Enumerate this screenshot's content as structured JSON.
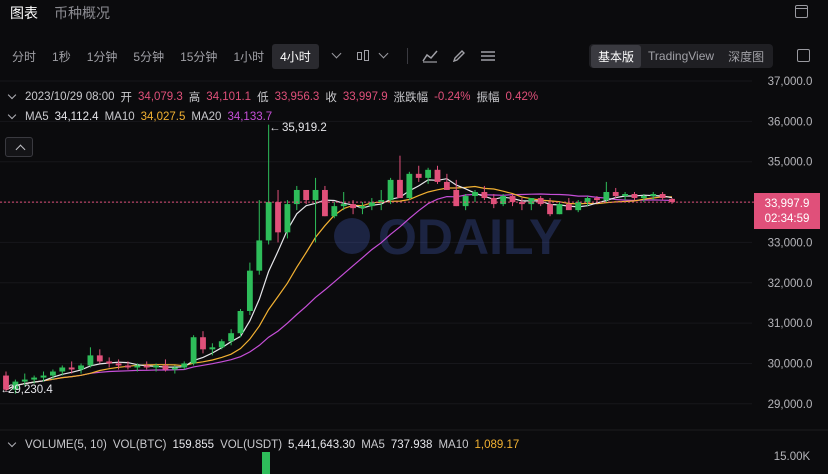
{
  "top_tabs": [
    {
      "label": "图表",
      "active": true
    },
    {
      "label": "币种概况",
      "active": false
    }
  ],
  "timeframes": [
    "分时",
    "1秒",
    "1分钟",
    "5分钟",
    "15分钟",
    "1小时",
    "4小时"
  ],
  "active_timeframe": "4小时",
  "view_modes": [
    "基本版",
    "TradingView",
    "深度图"
  ],
  "active_view_mode": "基本版",
  "ohlc": {
    "date": "2023/10/29 08:00",
    "open_label": "开",
    "open": "34,079.3",
    "high_label": "高",
    "high": "34,101.1",
    "low_label": "低",
    "low": "33,956.3",
    "close_label": "收",
    "close": "33,997.9",
    "change_label": "涨跌幅",
    "change": "-0.24%",
    "amplitude_label": "振幅",
    "amplitude": "0.42%"
  },
  "ma": {
    "ma5_label": "MA5",
    "ma5": "34,112.4",
    "ma10_label": "MA10",
    "ma10": "34,027.5",
    "ma20_label": "MA20",
    "ma20": "34,133.7"
  },
  "volume": {
    "title": "VOLUME(5, 10)",
    "btc_label": "VOL(BTC)",
    "btc": "159.855",
    "usdt_label": "VOL(USDT)",
    "usdt": "5,441,643.30",
    "ma5_label": "MA5",
    "ma5": "737.938",
    "ma10_label": "MA10",
    "ma10": "1,089.17",
    "axis_label": "15.00K"
  },
  "price_tag": {
    "price": "33,997.9",
    "countdown": "02:34:59"
  },
  "annotations": {
    "high_marker": "35,919.2",
    "low_marker": "29,230.4"
  },
  "watermark": "ODAILY",
  "colors": {
    "up": "#2ebd5a",
    "down": "#e0507a",
    "ma5": "#e6e6ea",
    "ma10": "#f2b132",
    "ma20": "#c64fd8",
    "background": "#0b0b0d"
  },
  "chart_data": {
    "type": "candlestick",
    "yaxis_ticks": [
      "37,000.0",
      "36,000.0",
      "35,000.0",
      "34,000.0",
      "33,000.0",
      "32,000.0",
      "31,000.0",
      "30,000.0",
      "29,000.0"
    ],
    "ylim": [
      28400,
      37150
    ],
    "candles": [
      [
        29700,
        29800,
        29300,
        29350
      ],
      [
        29350,
        29600,
        29250,
        29550
      ],
      [
        29550,
        29750,
        29450,
        29600
      ],
      [
        29600,
        29700,
        29500,
        29650
      ],
      [
        29650,
        29800,
        29550,
        29700
      ],
      [
        29700,
        29850,
        29600,
        29800
      ],
      [
        29800,
        29950,
        29700,
        29900
      ],
      [
        29900,
        30050,
        29750,
        29850
      ],
      [
        29850,
        30000,
        29750,
        29950
      ],
      [
        29950,
        30400,
        29900,
        30200
      ],
      [
        30200,
        30350,
        30000,
        30050
      ],
      [
        30050,
        30150,
        29900,
        30000
      ],
      [
        30000,
        30100,
        29850,
        29950
      ],
      [
        29950,
        30050,
        29850,
        29900
      ],
      [
        29900,
        30000,
        29800,
        29950
      ],
      [
        29950,
        30050,
        29850,
        29900
      ],
      [
        29900,
        30000,
        29800,
        29950
      ],
      [
        29950,
        30100,
        29800,
        29850
      ],
      [
        29850,
        29950,
        29750,
        29900
      ],
      [
        29900,
        30050,
        29850,
        30000
      ],
      [
        30000,
        30700,
        29950,
        30650
      ],
      [
        30650,
        30800,
        30250,
        30350
      ],
      [
        30350,
        30500,
        30200,
        30400
      ],
      [
        30400,
        30600,
        30350,
        30550
      ],
      [
        30550,
        30850,
        30450,
        30750
      ],
      [
        30750,
        31350,
        30650,
        31300
      ],
      [
        31300,
        32500,
        31200,
        32300
      ],
      [
        32300,
        34050,
        32200,
        33050
      ],
      [
        33050,
        35919,
        32950,
        34000
      ],
      [
        34000,
        34300,
        33000,
        33250
      ],
      [
        33250,
        34050,
        33100,
        33950
      ],
      [
        33950,
        34400,
        33800,
        34300
      ],
      [
        34300,
        34300,
        33950,
        34050
      ],
      [
        34050,
        34600,
        33000,
        34300
      ],
      [
        34300,
        34400,
        33650,
        33650
      ],
      [
        33650,
        34000,
        33600,
        33900
      ],
      [
        33900,
        34250,
        33800,
        33950
      ],
      [
        33950,
        34050,
        33700,
        33850
      ],
      [
        33850,
        34000,
        33700,
        33900
      ],
      [
        33900,
        34100,
        33800,
        34000
      ],
      [
        34000,
        34300,
        33800,
        34050
      ],
      [
        34050,
        34600,
        33950,
        34550
      ],
      [
        34550,
        35150,
        34100,
        34100
      ],
      [
        34100,
        34750,
        34050,
        34700
      ],
      [
        34700,
        34900,
        34500,
        34600
      ],
      [
        34600,
        34850,
        34450,
        34800
      ],
      [
        34800,
        34900,
        34450,
        34500
      ],
      [
        34500,
        34700,
        34300,
        34300
      ],
      [
        34300,
        34550,
        33900,
        33900
      ],
      [
        33900,
        34200,
        33800,
        34150
      ],
      [
        34150,
        34300,
        34000,
        34250
      ],
      [
        34250,
        34400,
        34050,
        34100
      ],
      [
        34100,
        34200,
        33850,
        33950
      ],
      [
        33950,
        34200,
        33900,
        34150
      ],
      [
        34150,
        34200,
        33900,
        34000
      ],
      [
        34000,
        34100,
        33800,
        33950
      ],
      [
        33950,
        34050,
        33800,
        34100
      ],
      [
        34100,
        34150,
        33900,
        33950
      ],
      [
        33950,
        34100,
        33650,
        33700
      ],
      [
        33700,
        34000,
        33700,
        33950
      ],
      [
        33950,
        34100,
        33850,
        33800
      ],
      [
        33800,
        34050,
        33750,
        34000
      ],
      [
        34000,
        34150,
        33900,
        34100
      ],
      [
        34100,
        34150,
        34000,
        34050
      ],
      [
        34050,
        34500,
        34000,
        34250
      ],
      [
        34250,
        34350,
        34100,
        34150
      ],
      [
        34150,
        34250,
        34050,
        34200
      ],
      [
        34200,
        34250,
        34050,
        34100
      ],
      [
        34100,
        34200,
        34000,
        34150
      ],
      [
        34150,
        34250,
        34050,
        34200
      ],
      [
        34200,
        34250,
        34050,
        34100
      ],
      [
        34079,
        34101,
        33956,
        33998
      ]
    ]
  }
}
